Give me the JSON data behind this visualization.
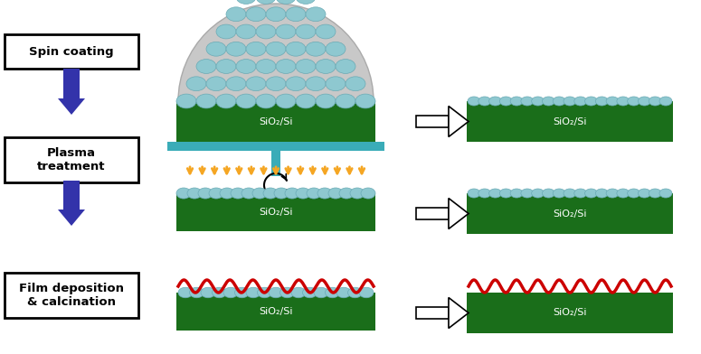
{
  "bg_color": "#ffffff",
  "dark_green": "#1a6e1a",
  "teal_sphere": "#8ec8d0",
  "teal_sphere_edge": "#6aaab5",
  "teal_platform": "#3aacb8",
  "arrow_blue": "#3333aa",
  "arrow_orange": "#f5a623",
  "red_wave": "#cc0000",
  "text_color": "#ffffff",
  "sio2_text": "SiO₂/Si",
  "box1_label": "Spin coating",
  "box2_label": "Plasma\ntreatment",
  "box3_label": "Film deposition\n& calcination",
  "figsize": [
    7.75,
    3.92
  ],
  "dpi": 100
}
